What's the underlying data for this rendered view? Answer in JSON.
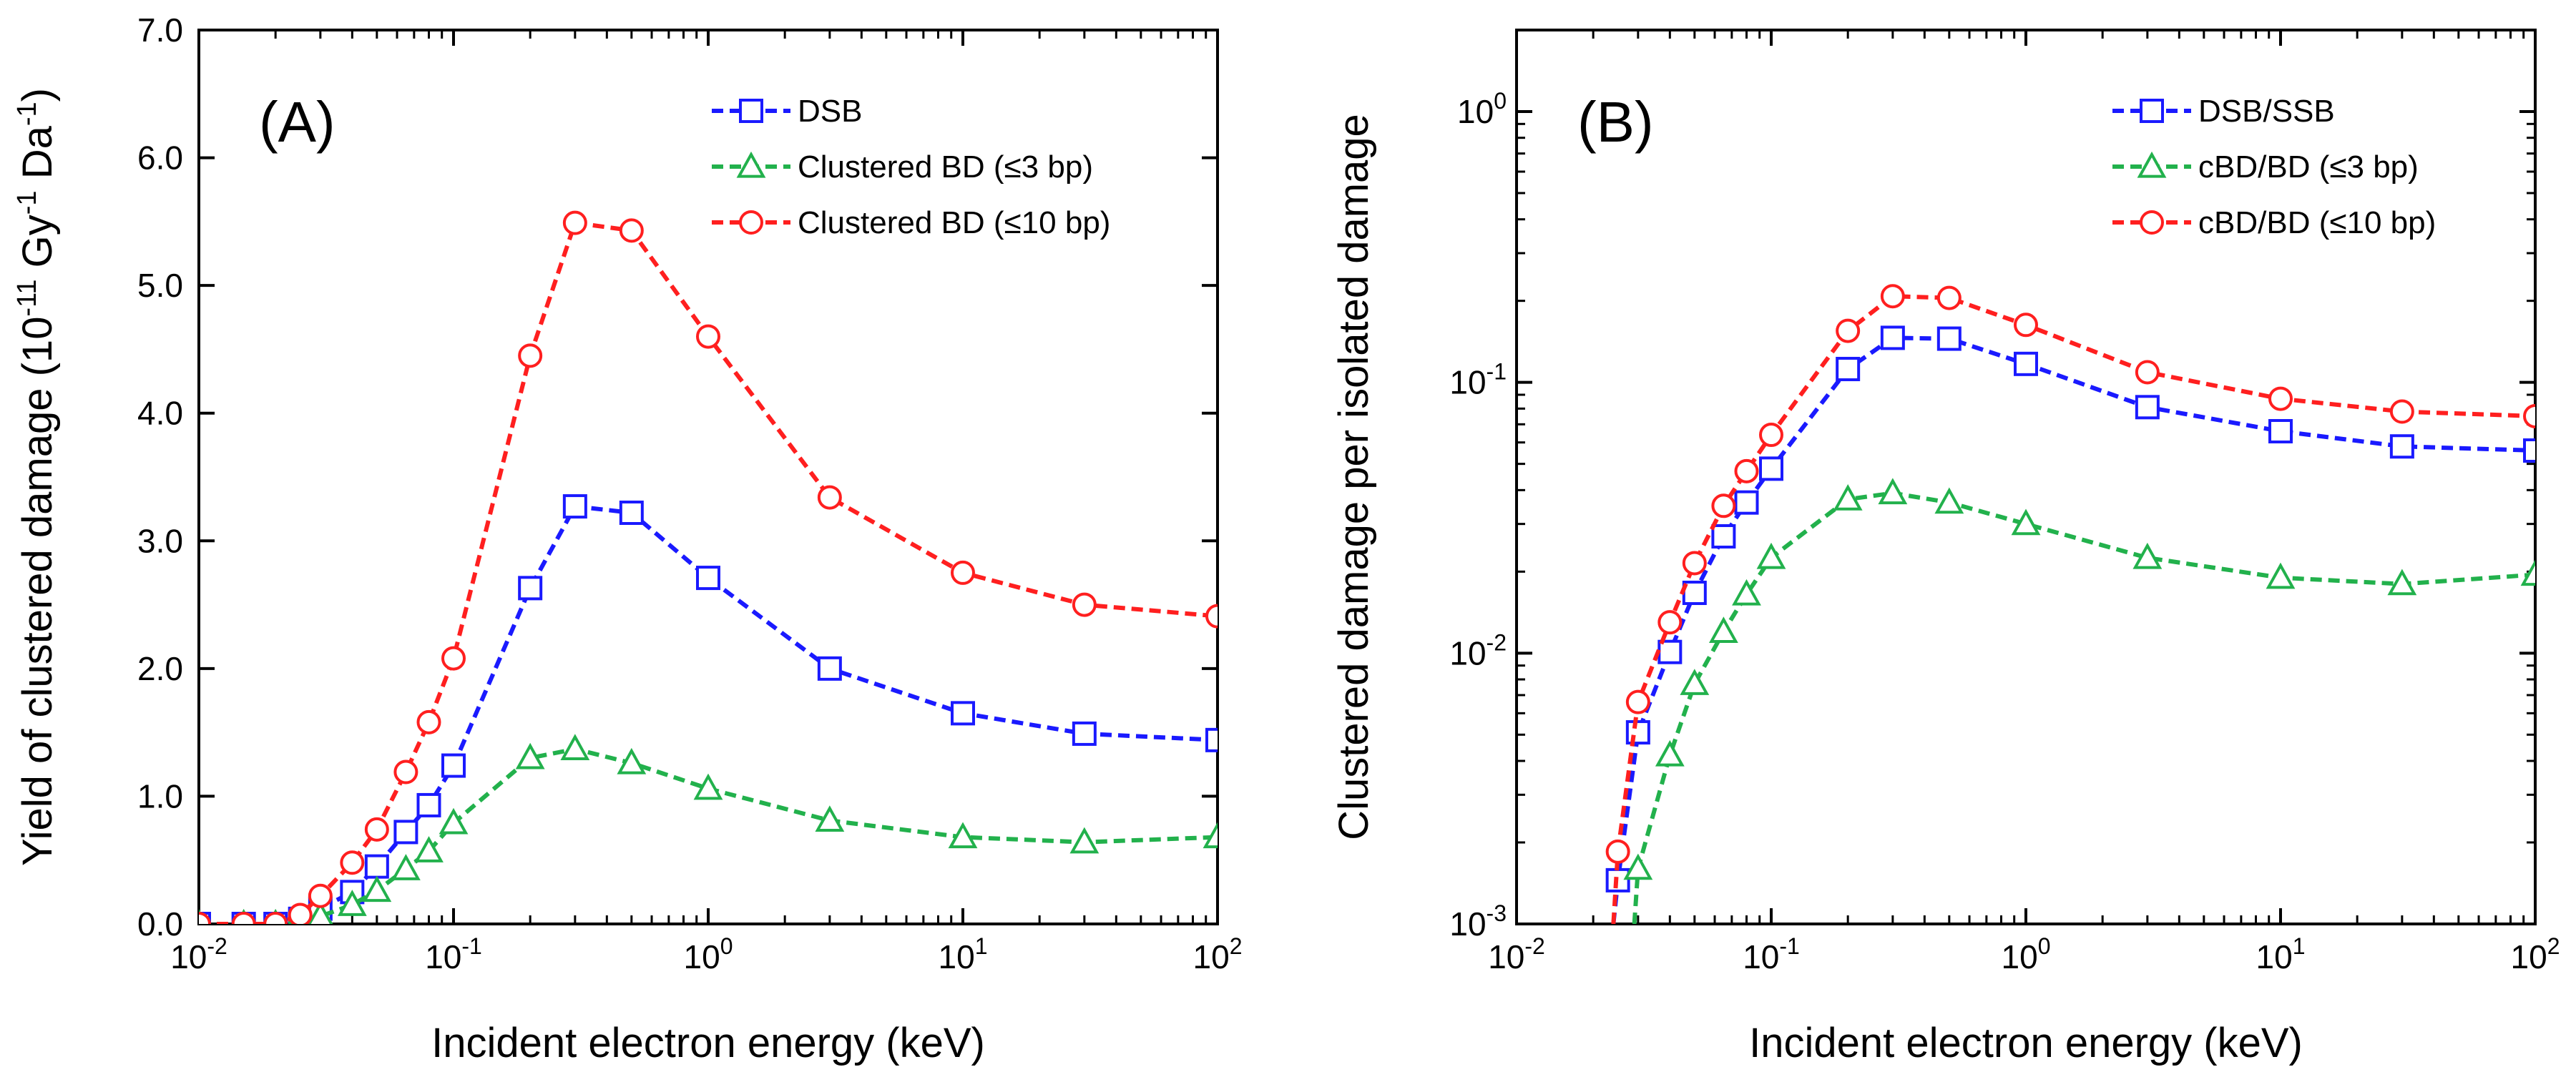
{
  "colors": {
    "DSB": "#1a1aff",
    "BD3": "#22b14c",
    "BD10": "#ff1f1f"
  },
  "chart_data": [
    {
      "id": "A",
      "panel_label": "(A)",
      "type": "line",
      "x_scale": "log",
      "y_scale": "linear",
      "xlim": [
        0.01,
        100
      ],
      "ylim": [
        0,
        7
      ],
      "xlabel": "Incident electron energy (keV)",
      "ylabel": "Yield of clustered damage (10-11 Gy-1 Da-1)",
      "ylabel_parts": [
        "Yield of clustered damage (10",
        "-11",
        " Gy",
        "-1",
        " Da",
        "-1",
        ")"
      ],
      "xticks": [
        {
          "value": 0.01,
          "base": "10",
          "exp": "-2"
        },
        {
          "value": 0.1,
          "base": "10",
          "exp": "-1"
        },
        {
          "value": 1,
          "base": "10",
          "exp": "0"
        },
        {
          "value": 10,
          "base": "10",
          "exp": "1"
        },
        {
          "value": 100,
          "base": "10",
          "exp": "2"
        }
      ],
      "yticks": [
        {
          "value": 0,
          "label": "0.0"
        },
        {
          "value": 1,
          "label": "1.0"
        },
        {
          "value": 2,
          "label": "2.0"
        },
        {
          "value": 3,
          "label": "3.0"
        },
        {
          "value": 4,
          "label": "4.0"
        },
        {
          "value": 5,
          "label": "5.0"
        },
        {
          "value": 6,
          "label": "6.0"
        },
        {
          "value": 7,
          "label": "7.0"
        }
      ],
      "legend_position": "top-right",
      "series": [
        {
          "name": "DSB",
          "marker": "square",
          "color_key": "DSB",
          "x": [
            0.01,
            0.015,
            0.02,
            0.025,
            0.03,
            0.04,
            0.05,
            0.065,
            0.08,
            0.1,
            0.2,
            0.3,
            0.5,
            1,
            3,
            10,
            30,
            100
          ],
          "y": [
            0.0,
            0.0,
            0.0,
            0.04,
            0.12,
            0.25,
            0.45,
            0.72,
            0.93,
            1.24,
            2.63,
            3.27,
            3.22,
            2.71,
            2.0,
            1.65,
            1.49,
            1.44
          ]
        },
        {
          "name": "Clustered BD (≤3 bp)",
          "marker": "triangle",
          "color_key": "BD3",
          "x": [
            0.01,
            0.015,
            0.02,
            0.025,
            0.03,
            0.04,
            0.05,
            0.065,
            0.08,
            0.1,
            0.2,
            0.3,
            0.5,
            1,
            3,
            10,
            30,
            100
          ],
          "y": [
            0.0,
            0.0,
            0.0,
            0.01,
            0.06,
            0.15,
            0.26,
            0.43,
            0.57,
            0.79,
            1.3,
            1.37,
            1.26,
            1.06,
            0.81,
            0.68,
            0.64,
            0.68
          ]
        },
        {
          "name": "Clustered BD (≤10 bp)",
          "marker": "circle",
          "color_key": "BD10",
          "x": [
            0.01,
            0.015,
            0.02,
            0.025,
            0.03,
            0.04,
            0.05,
            0.065,
            0.08,
            0.1,
            0.2,
            0.3,
            0.5,
            1,
            3,
            10,
            30,
            100
          ],
          "y": [
            0.0,
            0.0,
            0.0,
            0.07,
            0.22,
            0.48,
            0.74,
            1.19,
            1.58,
            2.08,
            4.45,
            5.49,
            5.43,
            4.6,
            3.34,
            2.75,
            2.5,
            2.41
          ]
        }
      ]
    },
    {
      "id": "B",
      "panel_label": "(B)",
      "type": "line",
      "x_scale": "log",
      "y_scale": "log",
      "xlim": [
        0.01,
        100
      ],
      "ylim": [
        0.001,
        2
      ],
      "xlabel": "Incident electron energy (keV)",
      "ylabel": "Clustered damage per isolated damage",
      "xticks": [
        {
          "value": 0.01,
          "base": "10",
          "exp": "-2"
        },
        {
          "value": 0.1,
          "base": "10",
          "exp": "-1"
        },
        {
          "value": 1,
          "base": "10",
          "exp": "0"
        },
        {
          "value": 10,
          "base": "10",
          "exp": "1"
        },
        {
          "value": 100,
          "base": "10",
          "exp": "2"
        }
      ],
      "yticks": [
        {
          "value": 0.001,
          "base": "10",
          "exp": "-3"
        },
        {
          "value": 0.01,
          "base": "10",
          "exp": "-2"
        },
        {
          "value": 0.1,
          "base": "10",
          "exp": "-1"
        },
        {
          "value": 1,
          "base": "10",
          "exp": "0"
        }
      ],
      "legend_position": "top-right",
      "series": [
        {
          "name": "DSB/SSB",
          "marker": "square",
          "color_key": "DSB",
          "x": [
            0.025,
            0.03,
            0.04,
            0.05,
            0.065,
            0.08,
            0.1,
            0.2,
            0.3,
            0.5,
            1,
            3,
            10,
            30,
            100
          ],
          "y": [
            0.00145,
            0.0051,
            0.0101,
            0.0167,
            0.027,
            0.036,
            0.048,
            0.112,
            0.146,
            0.145,
            0.117,
            0.081,
            0.066,
            0.058,
            0.056
          ],
          "line_from": [
            0.024,
            0.001
          ]
        },
        {
          "name": "cBD/BD (≤3 bp)",
          "marker": "triangle",
          "color_key": "BD3",
          "x": [
            0.03,
            0.04,
            0.05,
            0.065,
            0.08,
            0.1,
            0.2,
            0.3,
            0.5,
            1,
            3,
            10,
            30,
            100
          ],
          "y": [
            0.0016,
            0.0042,
            0.0077,
            0.012,
            0.0165,
            0.0225,
            0.037,
            0.039,
            0.036,
            0.03,
            0.0225,
            0.019,
            0.018,
            0.0195
          ],
          "line_from": [
            0.029,
            0.001
          ]
        },
        {
          "name": "cBD/BD (≤10 bp)",
          "marker": "circle",
          "color_key": "BD10",
          "x": [
            0.025,
            0.03,
            0.04,
            0.05,
            0.065,
            0.08,
            0.1,
            0.2,
            0.3,
            0.5,
            1,
            3,
            10,
            30,
            100
          ],
          "y": [
            0.00185,
            0.0066,
            0.013,
            0.0215,
            0.035,
            0.047,
            0.064,
            0.155,
            0.208,
            0.205,
            0.163,
            0.109,
            0.087,
            0.078,
            0.075
          ],
          "line_from": [
            0.024,
            0.001
          ]
        }
      ]
    }
  ]
}
